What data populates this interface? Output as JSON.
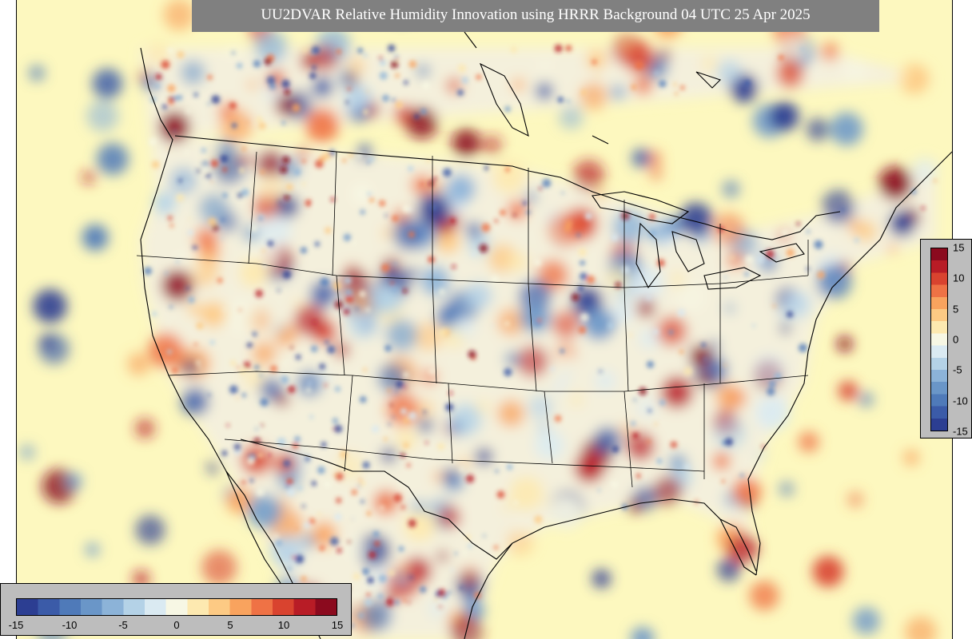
{
  "title": "UU2DVAR Relative Humidity Innovation using HRRR Background 04 UTC 25 Apr 2025",
  "colors": {
    "title_background": "#808080",
    "title_text": "#ffffff",
    "colorbar_box": "#bdbdbd",
    "ocean_background": "#fdf8bf",
    "scale": [
      "#2c3e92",
      "#3b5ba8",
      "#4f7ab9",
      "#6a96c8",
      "#8cb3d8",
      "#b4d2e7",
      "#daeaf2",
      "#f7f7e4",
      "#fde9b0",
      "#fdca84",
      "#f9a35e",
      "#ef7245",
      "#d9432f",
      "#b81c26",
      "#8b0a1e"
    ]
  },
  "colorbar": {
    "min": -15,
    "max": 15,
    "vertical_ticks": [
      "15",
      "10",
      "5",
      "0",
      "-5",
      "-10",
      "-15"
    ],
    "horizontal_ticks": [
      "-15",
      "-10",
      "-5",
      "0",
      "5",
      "10",
      "15"
    ]
  }
}
